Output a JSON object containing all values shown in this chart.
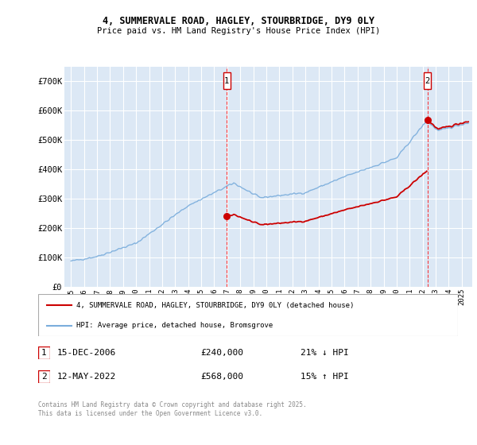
{
  "title_line1": "4, SUMMERVALE ROAD, HAGLEY, STOURBRIDGE, DY9 0LY",
  "title_line2": "Price paid vs. HM Land Registry's House Price Index (HPI)",
  "plot_bg_color": "#dce8f5",
  "grid_color": "#ffffff",
  "hpi_color": "#7aaddc",
  "price_color": "#cc0000",
  "ylim": [
    0,
    750000
  ],
  "yticks": [
    0,
    100000,
    200000,
    300000,
    400000,
    500000,
    600000,
    700000
  ],
  "ytick_labels": [
    "£0",
    "£100K",
    "£200K",
    "£300K",
    "£400K",
    "£500K",
    "£600K",
    "£700K"
  ],
  "sale1_year": 2006.96,
  "sale1_price": 240000,
  "sale2_year": 2022.37,
  "sale2_price": 568000,
  "legend_line1": "4, SUMMERVALE ROAD, HAGLEY, STOURBRIDGE, DY9 0LY (detached house)",
  "legend_line2": "HPI: Average price, detached house, Bromsgrove",
  "note1_date": "15-DEC-2006",
  "note1_price": "£240,000",
  "note1_hpi": "21% ↓ HPI",
  "note2_date": "12-MAY-2022",
  "note2_price": "£568,000",
  "note2_hpi": "15% ↑ HPI",
  "footer": "Contains HM Land Registry data © Crown copyright and database right 2025.\nThis data is licensed under the Open Government Licence v3.0."
}
